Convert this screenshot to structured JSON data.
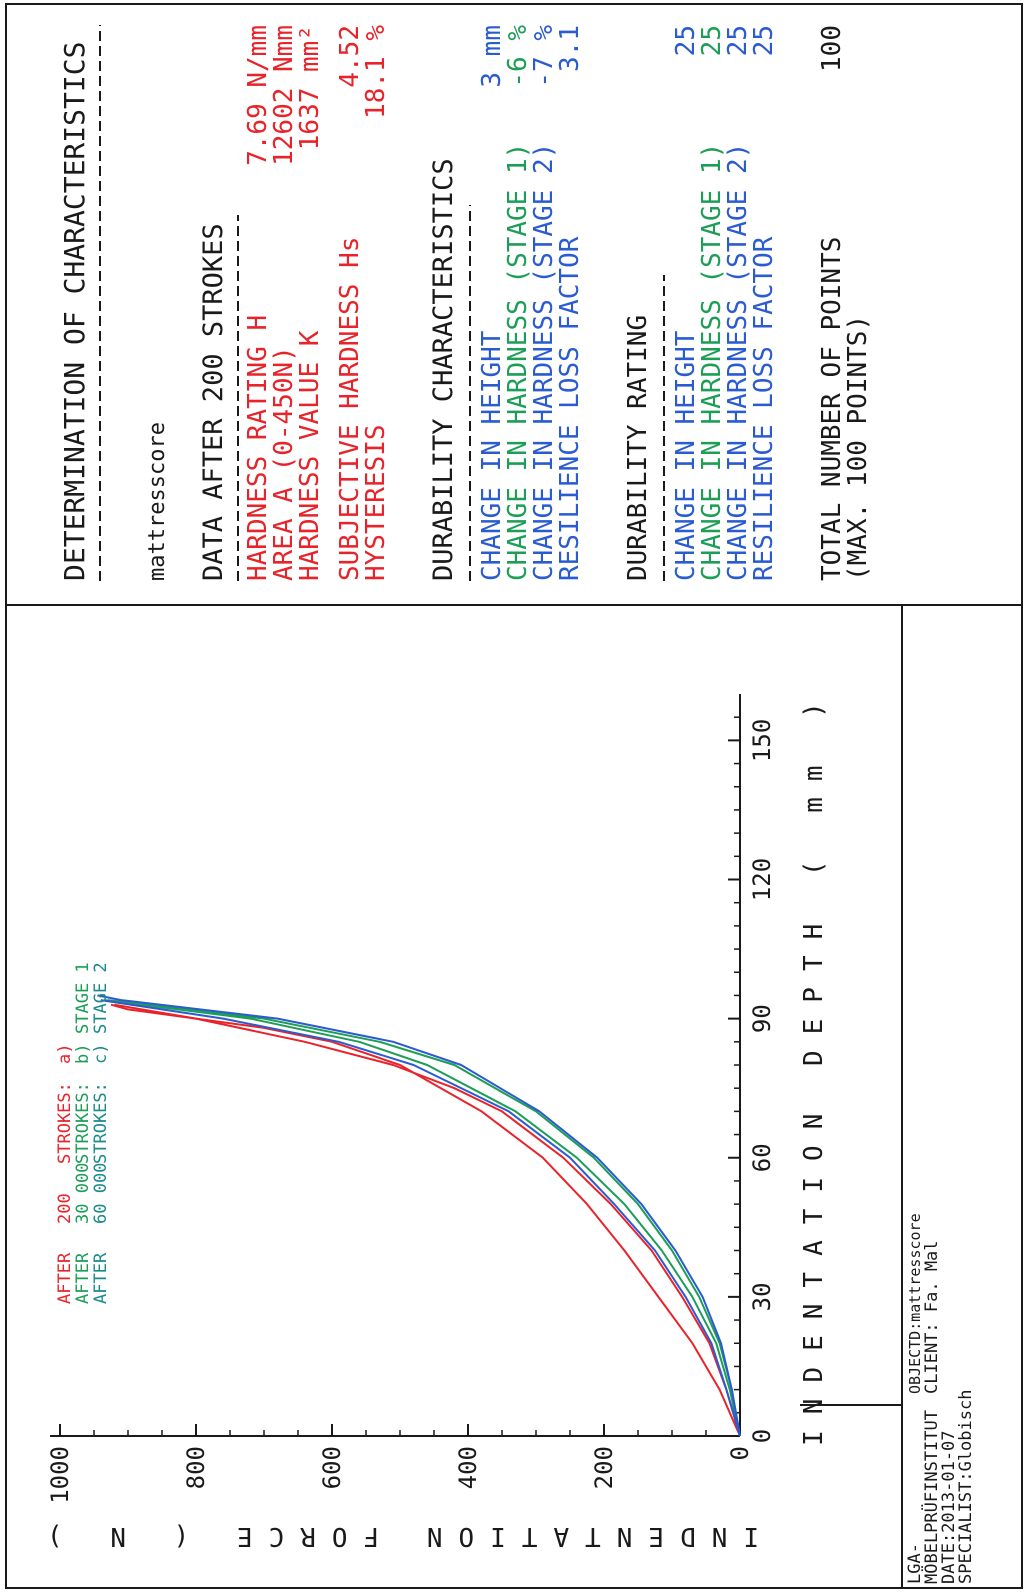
{
  "report": {
    "heading": "DETERMINATION OF CHARACTERISTICS",
    "object_name": "mattresscore",
    "data_header": "DATA AFTER 200 STROKES",
    "data_rows": [
      {
        "label": "HARDNESS RATING H",
        "value": "7.69 N/mm",
        "color": "#e8232a"
      },
      {
        "label": "AREA A (0-450N)",
        "value": "12602 Nmm",
        "color": "#e8232a"
      },
      {
        "label": "HARDNESS VALUE K",
        "value": "1637 mm²",
        "color": "#e8232a"
      },
      {
        "label": "SUBJECTIVE HARDNESS Hs",
        "value": "4.52",
        "color": "#e8232a"
      },
      {
        "label": "HYSTERESIS",
        "value": "18.1 %",
        "color": "#e8232a"
      }
    ],
    "durability_header": "DURABILITY CHARACTERISTICS",
    "durability_rows": [
      {
        "label": "CHANGE IN HEIGHT",
        "value": "3 mm",
        "color": "#2a5bd0"
      },
      {
        "label": "CHANGE IN HARDNESS (STAGE 1)",
        "value": "-6 %",
        "color": "#1d9e57"
      },
      {
        "label": "CHANGE IN HARDNESS (STAGE 2)",
        "value": "-7 %",
        "color": "#2a5bd0"
      },
      {
        "label": "RESILIENCE LOSS FACTOR",
        "value": "3.1",
        "color": "#2a5bd0"
      }
    ],
    "rating_header": "DURABILITY RATING",
    "rating_rows": [
      {
        "label": "CHANGE IN HEIGHT",
        "value": "25",
        "color": "#2a5bd0"
      },
      {
        "label": "CHANGE IN HARDNESS (STAGE 1)",
        "value": "25",
        "color": "#1d9e57"
      },
      {
        "label": "CHANGE IN HARDNESS (STAGE 2)",
        "value": "25",
        "color": "#2a5bd0"
      },
      {
        "label": "RESILIENCE LOSS FACTOR",
        "value": "25",
        "color": "#2a5bd0"
      }
    ],
    "total_label": "TOTAL NUMBER OF POINTS",
    "total_value": "100",
    "total_note": "(MAX. 100 POINTS)"
  },
  "footer": {
    "institute_lines": [
      "LGA-",
      "MÖBELPRÜFINSTITUT",
      "DATE:2013-01-07",
      "SPECIALIST:Globisch"
    ],
    "object_line": "OBJECTD:mattresscore",
    "client_line": "CLIENT: Fa. Mal"
  },
  "chart_data": {
    "type": "line",
    "xlabel": "INDENTATION DEPTH ( mm )",
    "ylabel": "INDENTATION FORCE ( N )",
    "xlim": [
      0,
      160
    ],
    "ylim": [
      0,
      1000
    ],
    "x_ticks": [
      0,
      30,
      60,
      90,
      120,
      150
    ],
    "y_ticks": [
      0,
      200,
      400,
      600,
      800,
      1000
    ],
    "grid": false,
    "legend": [
      {
        "prefix": "AFTER",
        "count": "200",
        "suffix": "STROKES:",
        "tag": "a)",
        "stage": "",
        "color": "#e8232a"
      },
      {
        "prefix": "AFTER",
        "count": "30 000",
        "suffix": "STROKES:",
        "tag": "b)",
        "stage": "STAGE 1",
        "color": "#1d9e57"
      },
      {
        "prefix": "AFTER",
        "count": "60 000",
        "suffix": "STROKES:",
        "tag": "c)",
        "stage": "STAGE 2",
        "color": "#1b8a8a"
      }
    ],
    "series": [
      {
        "color": "#e8232a",
        "points": [
          [
            0,
            0
          ],
          [
            10,
            30
          ],
          [
            20,
            70
          ],
          [
            30,
            120
          ],
          [
            40,
            170
          ],
          [
            50,
            225
          ],
          [
            60,
            290
          ],
          [
            70,
            380
          ],
          [
            80,
            500
          ],
          [
            85,
            600
          ],
          [
            88,
            700
          ],
          [
            90,
            800
          ],
          [
            92,
            900
          ],
          [
            93,
            925
          ]
        ]
      },
      {
        "color": "#e8232a",
        "points": [
          [
            0,
            0
          ],
          [
            10,
            20
          ],
          [
            20,
            45
          ],
          [
            30,
            85
          ],
          [
            40,
            130
          ],
          [
            50,
            190
          ],
          [
            60,
            260
          ],
          [
            70,
            350
          ],
          [
            75,
            420
          ],
          [
            80,
            510
          ],
          [
            85,
            640
          ],
          [
            90,
            800
          ],
          [
            93,
            920
          ]
        ]
      },
      {
        "color": "#1d9e57",
        "points": [
          [
            0,
            0
          ],
          [
            10,
            15
          ],
          [
            20,
            35
          ],
          [
            30,
            70
          ],
          [
            40,
            115
          ],
          [
            50,
            170
          ],
          [
            60,
            240
          ],
          [
            70,
            330
          ],
          [
            80,
            460
          ],
          [
            85,
            560
          ],
          [
            90,
            720
          ],
          [
            93,
            880
          ],
          [
            94,
            935
          ]
        ]
      },
      {
        "color": "#1d9e57",
        "points": [
          [
            0,
            0
          ],
          [
            10,
            12
          ],
          [
            20,
            30
          ],
          [
            30,
            60
          ],
          [
            40,
            100
          ],
          [
            50,
            150
          ],
          [
            60,
            215
          ],
          [
            70,
            300
          ],
          [
            80,
            420
          ],
          [
            85,
            530
          ],
          [
            90,
            700
          ],
          [
            94,
            930
          ]
        ]
      },
      {
        "color": "#2a5bd0",
        "points": [
          [
            0,
            0
          ],
          [
            10,
            12
          ],
          [
            20,
            28
          ],
          [
            30,
            55
          ],
          [
            40,
            95
          ],
          [
            50,
            145
          ],
          [
            60,
            210
          ],
          [
            70,
            295
          ],
          [
            80,
            410
          ],
          [
            85,
            510
          ],
          [
            90,
            680
          ],
          [
            94,
            910
          ],
          [
            95,
            945
          ]
        ]
      },
      {
        "color": "#2a5bd0",
        "points": [
          [
            0,
            0
          ],
          [
            10,
            20
          ],
          [
            20,
            42
          ],
          [
            30,
            80
          ],
          [
            40,
            125
          ],
          [
            50,
            185
          ],
          [
            60,
            250
          ],
          [
            70,
            340
          ],
          [
            80,
            480
          ],
          [
            85,
            590
          ],
          [
            90,
            760
          ],
          [
            94,
            940
          ]
        ]
      }
    ]
  }
}
